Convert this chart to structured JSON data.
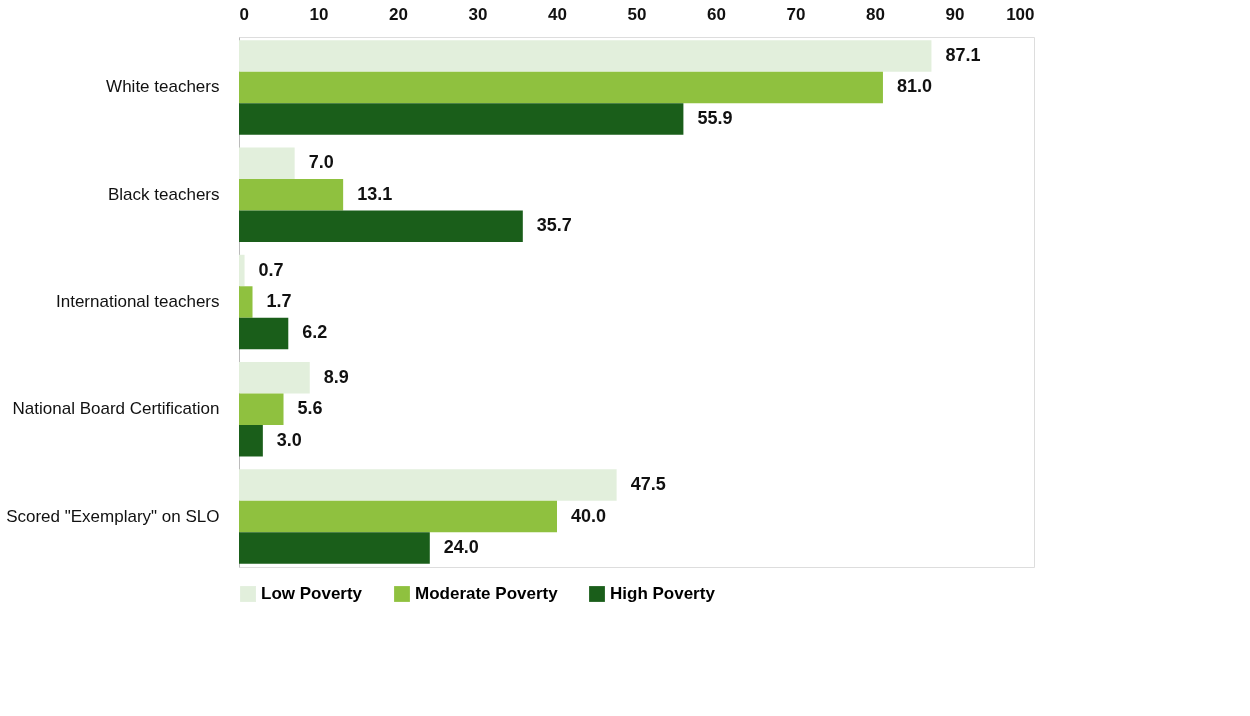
{
  "chart_data": {
    "type": "bar",
    "orientation": "horizontal",
    "categories": [
      "White teachers",
      "Black teachers",
      "International teachers",
      "National Board Certification",
      "Scored \"Exemplary\" on SLO"
    ],
    "series": [
      {
        "name": "Low Poverty",
        "color": "#e2efdc",
        "values": [
          87.1,
          7.0,
          0.7,
          8.9,
          47.5
        ],
        "value_labels": [
          "87.1",
          "7.0",
          "0.7",
          "8.9",
          "47.5"
        ]
      },
      {
        "name": "Moderate Poverty",
        "color": "#8fc13f",
        "values": [
          81.0,
          13.1,
          1.7,
          5.6,
          40.0
        ],
        "value_labels": [
          "81.0",
          "13.1",
          "1.7",
          "5.6",
          "40.0"
        ]
      },
      {
        "name": "High Poverty",
        "color": "#1a5e1a",
        "values": [
          55.9,
          35.7,
          6.2,
          3.0,
          24.0
        ],
        "value_labels": [
          "55.9",
          "35.7",
          "6.2",
          "3.0",
          "24.0"
        ]
      }
    ],
    "xlim": [
      0,
      100
    ],
    "xticks": [
      0,
      10,
      20,
      30,
      40,
      50,
      60,
      70,
      80,
      90,
      100
    ],
    "grid": false,
    "legend": "bottom"
  }
}
